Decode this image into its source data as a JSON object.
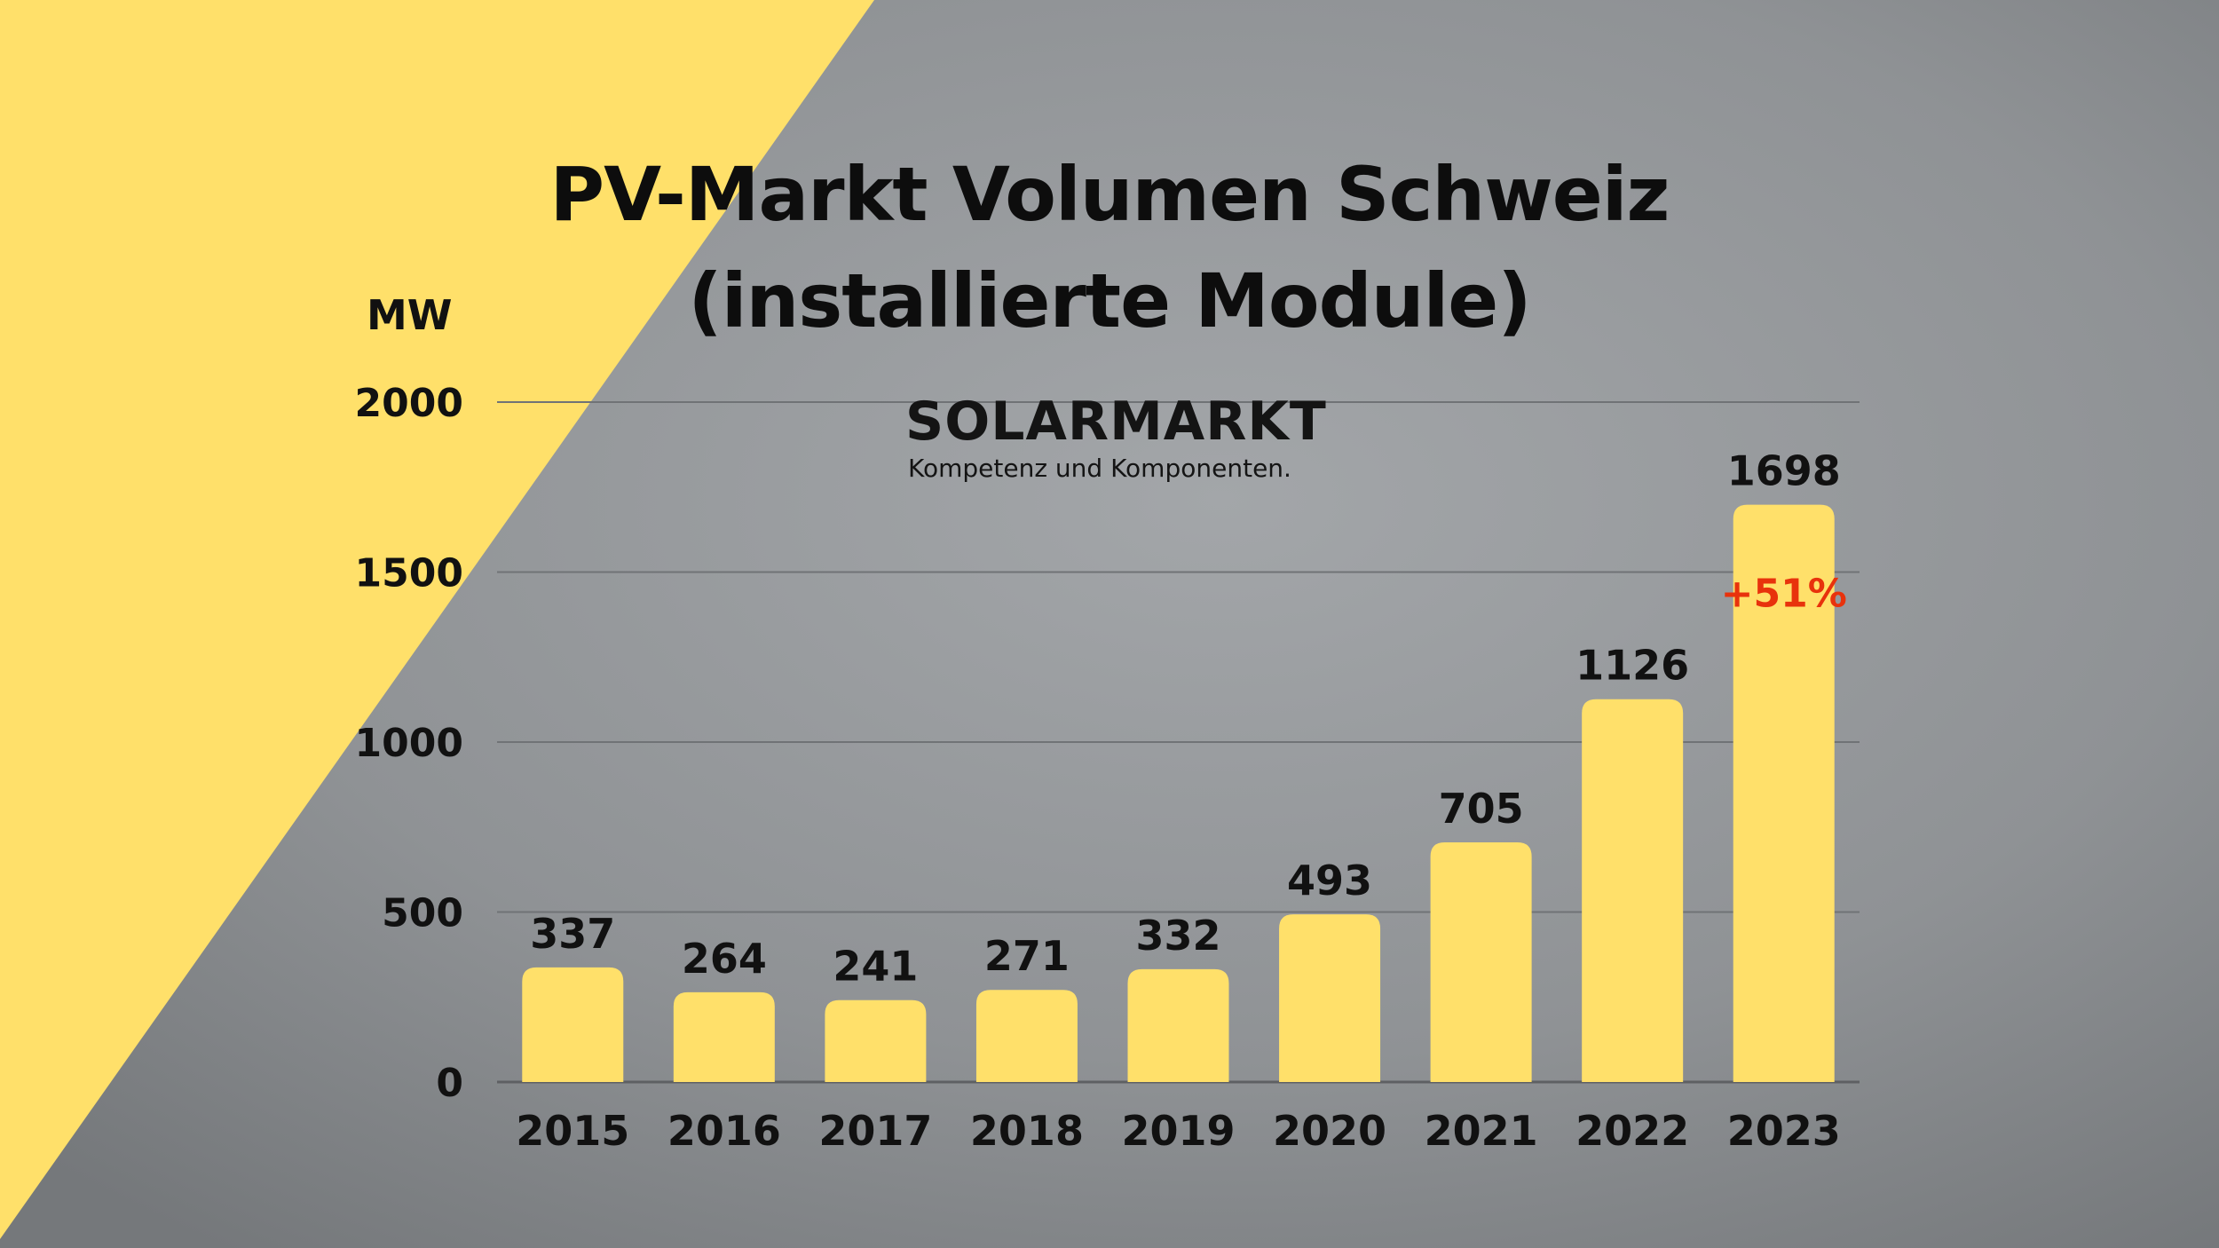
{
  "colors": {
    "accent": "#ffe06a",
    "label_growth": "#e8320c",
    "text": "#111111"
  },
  "brand": {
    "name": "SOLARMARKT",
    "tagline": "Kompetenz und Komponenten."
  },
  "chart_data": {
    "type": "bar",
    "title_lines": [
      "PV-Markt Volumen Schweiz",
      "(installierte Module)"
    ],
    "ylabel": "MW",
    "xlabel": "",
    "ylim": [
      0,
      2000
    ],
    "yticks": [
      0,
      500,
      1000,
      1500,
      2000
    ],
    "grid": true,
    "categories": [
      "2015",
      "2016",
      "2017",
      "2018",
      "2019",
      "2020",
      "2021",
      "2022",
      "2023"
    ],
    "values": [
      337,
      264,
      241,
      271,
      332,
      493,
      705,
      1126,
      1698
    ],
    "annotations": [
      {
        "category": "2023",
        "text": "+51%"
      }
    ]
  }
}
